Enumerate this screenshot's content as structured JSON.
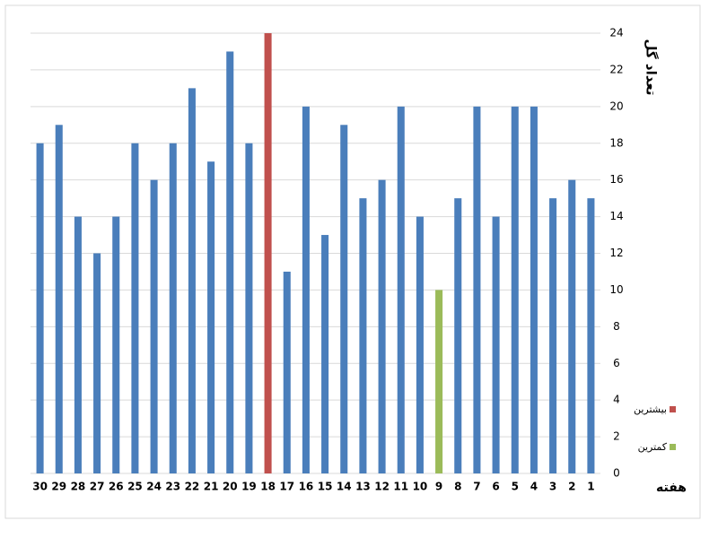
{
  "chart_data": {
    "type": "bar",
    "y_label": "تعداد گل",
    "x_label": "هفته",
    "categories": [
      "1",
      "2",
      "3",
      "4",
      "5",
      "6",
      "7",
      "8",
      "9",
      "10",
      "11",
      "12",
      "13",
      "14",
      "15",
      "16",
      "17",
      "18",
      "19",
      "20",
      "21",
      "22",
      "23",
      "24",
      "25",
      "26",
      "27",
      "28",
      "29",
      "30"
    ],
    "values": [
      15,
      16,
      15,
      20,
      20,
      14,
      20,
      15,
      10,
      14,
      20,
      16,
      15,
      19,
      13,
      20,
      11,
      24,
      18,
      23,
      17,
      21,
      18,
      16,
      18,
      14,
      12,
      14,
      19,
      18
    ],
    "colors": [
      "#4a7ebb",
      "#4a7ebb",
      "#4a7ebb",
      "#4a7ebb",
      "#4a7ebb",
      "#4a7ebb",
      "#4a7ebb",
      "#4a7ebb",
      "#9bbb59",
      "#4a7ebb",
      "#4a7ebb",
      "#4a7ebb",
      "#4a7ebb",
      "#4a7ebb",
      "#4a7ebb",
      "#4a7ebb",
      "#4a7ebb",
      "#c0504d",
      "#4a7ebb",
      "#4a7ebb",
      "#4a7ebb",
      "#4a7ebb",
      "#4a7ebb",
      "#4a7ebb",
      "#4a7ebb",
      "#4a7ebb",
      "#4a7ebb",
      "#4a7ebb",
      "#4a7ebb",
      "#4a7ebb"
    ],
    "legend": [
      {
        "name": "بیشترین",
        "color": "#c0504d"
      },
      {
        "name": "کمترین",
        "color": "#9bbb59"
      }
    ],
    "x_reversed": true,
    "y_axis_side": "right",
    "ylim": [
      0,
      24
    ],
    "yticks": [
      0,
      2,
      4,
      6,
      8,
      10,
      12,
      14,
      16,
      18,
      20,
      22,
      24
    ],
    "grid": true
  }
}
